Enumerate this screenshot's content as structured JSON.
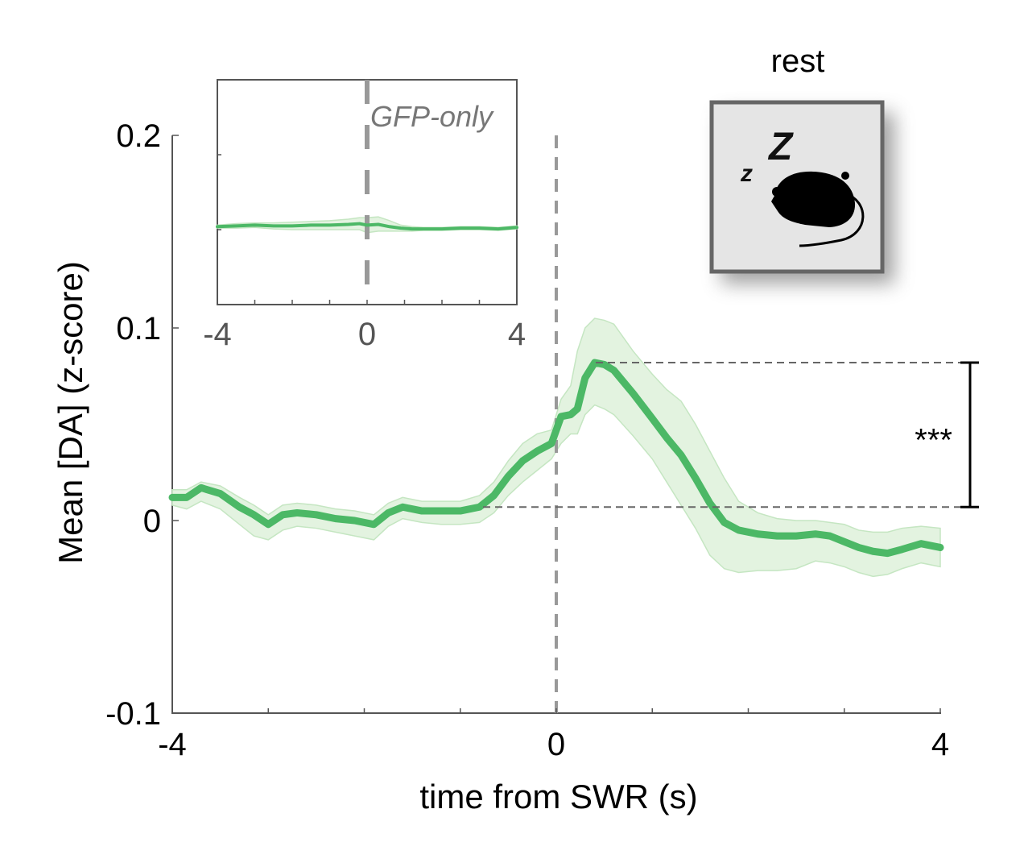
{
  "chart_data": [
    {
      "type": "line",
      "title": "rest",
      "xlabel": "time from SWR (s)",
      "ylabel": "Mean [DA] (z-score)",
      "xlim": [
        -4,
        4
      ],
      "ylim": [
        -0.1,
        0.2
      ],
      "xticks": [
        "-4",
        "0",
        "4"
      ],
      "xtick_values": [
        -4,
        0,
        4
      ],
      "yticks": [
        "-0.1",
        "0",
        "0.1",
        "0.2"
      ],
      "ytick_values": [
        -0.1,
        0,
        0.1,
        0.2
      ],
      "color": "#4cb866",
      "band_color": "#e3f3e0",
      "event_line_x": 0,
      "series": [
        {
          "name": "DA",
          "x": [
            -4,
            -3.85,
            -3.7,
            -3.5,
            -3.3,
            -3.15,
            -3.0,
            -2.85,
            -2.7,
            -2.5,
            -2.3,
            -2.1,
            -1.9,
            -1.75,
            -1.6,
            -1.4,
            -1.2,
            -1.0,
            -0.8,
            -0.65,
            -0.5,
            -0.35,
            -0.2,
            -0.05,
            0.05,
            0.15,
            0.22,
            0.3,
            0.4,
            0.5,
            0.6,
            0.8,
            1.0,
            1.15,
            1.3,
            1.45,
            1.6,
            1.75,
            1.9,
            2.1,
            2.3,
            2.5,
            2.7,
            2.85,
            3.0,
            3.15,
            3.3,
            3.45,
            3.6,
            3.8,
            4.0
          ],
          "y": [
            0.012,
            0.012,
            0.017,
            0.014,
            0.007,
            0.003,
            -0.002,
            0.003,
            0.004,
            0.003,
            0.001,
            0.0,
            -0.002,
            0.004,
            0.007,
            0.005,
            0.005,
            0.005,
            0.007,
            0.013,
            0.023,
            0.031,
            0.036,
            0.04,
            0.054,
            0.055,
            0.058,
            0.074,
            0.082,
            0.081,
            0.078,
            0.066,
            0.053,
            0.043,
            0.034,
            0.022,
            0.009,
            -0.001,
            -0.005,
            -0.007,
            -0.008,
            -0.008,
            -0.007,
            -0.008,
            -0.011,
            -0.014,
            -0.016,
            -0.017,
            -0.015,
            -0.012,
            -0.014
          ],
          "upper": [
            0.016,
            0.016,
            0.02,
            0.018,
            0.012,
            0.008,
            0.003,
            0.008,
            0.009,
            0.008,
            0.006,
            0.005,
            0.003,
            0.009,
            0.012,
            0.01,
            0.01,
            0.01,
            0.013,
            0.02,
            0.031,
            0.04,
            0.045,
            0.047,
            0.063,
            0.07,
            0.088,
            0.1,
            0.105,
            0.104,
            0.102,
            0.088,
            0.076,
            0.068,
            0.062,
            0.05,
            0.036,
            0.022,
            0.01,
            0.004,
            0.001,
            0.0,
            0.0,
            -0.001,
            -0.002,
            -0.005,
            -0.006,
            -0.006,
            -0.004,
            -0.003,
            -0.004
          ],
          "lower": [
            0.008,
            0.006,
            0.01,
            0.006,
            -0.002,
            -0.008,
            -0.01,
            -0.005,
            -0.003,
            -0.004,
            -0.006,
            -0.008,
            -0.01,
            -0.003,
            0.001,
            -0.001,
            -0.002,
            -0.002,
            -0.001,
            0.004,
            0.013,
            0.02,
            0.026,
            0.032,
            0.04,
            0.045,
            0.045,
            0.055,
            0.06,
            0.058,
            0.055,
            0.044,
            0.032,
            0.02,
            0.008,
            -0.004,
            -0.018,
            -0.025,
            -0.027,
            -0.026,
            -0.026,
            -0.025,
            -0.021,
            -0.022,
            -0.024,
            -0.027,
            -0.029,
            -0.028,
            -0.025,
            -0.022,
            -0.024
          ]
        }
      ],
      "annotation": {
        "text": "***",
        "y_high": 0.082,
        "y_low": 0.007
      }
    },
    {
      "type": "line",
      "title": "GFP-only",
      "xlim": [
        -4,
        4
      ],
      "ylim": [
        -0.1,
        0.2
      ],
      "xticks": [
        "-4",
        "0",
        "4"
      ],
      "xtick_values": [
        -4,
        0,
        4
      ],
      "color": "#4cb866",
      "series": [
        {
          "name": "GFP-only",
          "x": [
            -4,
            -3.5,
            -3.0,
            -2.5,
            -2.0,
            -1.5,
            -1.0,
            -0.5,
            -0.2,
            0,
            0.3,
            0.6,
            0.9,
            1.2,
            1.5,
            2.0,
            2.5,
            3.0,
            3.5,
            4.0
          ],
          "y": [
            0.004,
            0.005,
            0.006,
            0.005,
            0.005,
            0.006,
            0.006,
            0.007,
            0.008,
            0.006,
            0.007,
            0.004,
            0.002,
            0.001,
            0.001,
            0.001,
            0.002,
            0.002,
            0.001,
            0.003
          ],
          "upper": [
            0.006,
            0.008,
            0.009,
            0.009,
            0.01,
            0.011,
            0.012,
            0.014,
            0.016,
            0.016,
            0.017,
            0.012,
            0.006,
            0.004,
            0.003,
            0.003,
            0.004,
            0.004,
            0.003,
            0.005
          ],
          "lower": [
            0.002,
            0.002,
            0.003,
            0.001,
            0.0,
            0.0,
            0.0,
            0.0,
            0.0,
            -0.004,
            -0.002,
            -0.002,
            -0.002,
            -0.002,
            -0.001,
            -0.001,
            0.0,
            0.0,
            -0.001,
            0.001
          ]
        }
      ]
    }
  ]
}
